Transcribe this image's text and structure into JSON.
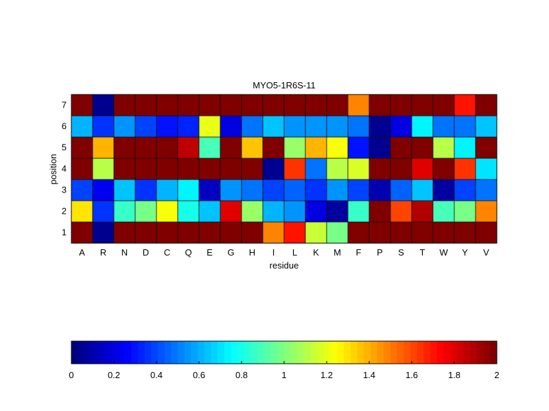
{
  "chart_data": {
    "type": "heatmap",
    "title": "MYO5-1R6S-11",
    "xlabel": "residue",
    "ylabel": "position",
    "x_categories": [
      "A",
      "R",
      "N",
      "D",
      "C",
      "Q",
      "E",
      "G",
      "H",
      "I",
      "L",
      "K",
      "M",
      "F",
      "P",
      "S",
      "T",
      "W",
      "Y",
      "V"
    ],
    "y_categories": [
      "1",
      "2",
      "3",
      "4",
      "5",
      "6",
      "7"
    ],
    "colormap": "jet",
    "clim": [
      0,
      2
    ],
    "values_by_position": {
      "7": [
        2,
        0.05,
        2,
        2,
        2,
        2,
        2,
        2,
        2,
        2,
        2,
        2,
        2,
        1.5,
        2,
        2,
        2,
        2,
        1.7,
        2
      ],
      "6": [
        0.6,
        0.35,
        0.55,
        0.4,
        0.3,
        0.33,
        1.2,
        0.2,
        0.5,
        0.65,
        0.55,
        0.55,
        0.55,
        0.5,
        0.05,
        0.2,
        0.75,
        0.5,
        0.5,
        0.65
      ],
      "5": [
        2,
        1.4,
        2,
        2,
        2,
        1.85,
        0.9,
        2,
        1.35,
        2,
        1.05,
        1.4,
        1.25,
        0.3,
        0.05,
        2,
        2,
        1.1,
        0.75,
        2
      ],
      "4": [
        2,
        1.1,
        2,
        2,
        2,
        2,
        2,
        2,
        2,
        0.05,
        1.65,
        0.5,
        1.12,
        1.17,
        2,
        2,
        1.8,
        2,
        1.65,
        0.7
      ],
      "3": [
        0.4,
        0.25,
        0.65,
        0.35,
        0.6,
        0.75,
        0.15,
        0.55,
        0.5,
        0.4,
        0.45,
        0.35,
        0.55,
        0.4,
        0.1,
        0.45,
        0.65,
        0.07,
        0.4,
        0.5
      ],
      "2": [
        1.3,
        0.35,
        0.85,
        1.0,
        1.25,
        0.8,
        0.65,
        1.8,
        1.05,
        0.6,
        0.55,
        0.2,
        0.08,
        0.85,
        2,
        1.6,
        1.9,
        0.9,
        1.0,
        1.5
      ],
      "1": [
        2,
        0.05,
        2,
        2,
        2,
        2,
        2,
        2,
        2,
        1.5,
        1.7,
        1.15,
        1.0,
        2,
        2,
        2,
        2,
        2,
        2,
        2
      ]
    },
    "colorbar": {
      "orientation": "horizontal",
      "range": [
        0,
        2
      ],
      "ticks": [
        "0",
        "0.2",
        "0.4",
        "0.6",
        "0.8",
        "1",
        "1.2",
        "1.4",
        "1.6",
        "1.8",
        "2"
      ]
    }
  }
}
